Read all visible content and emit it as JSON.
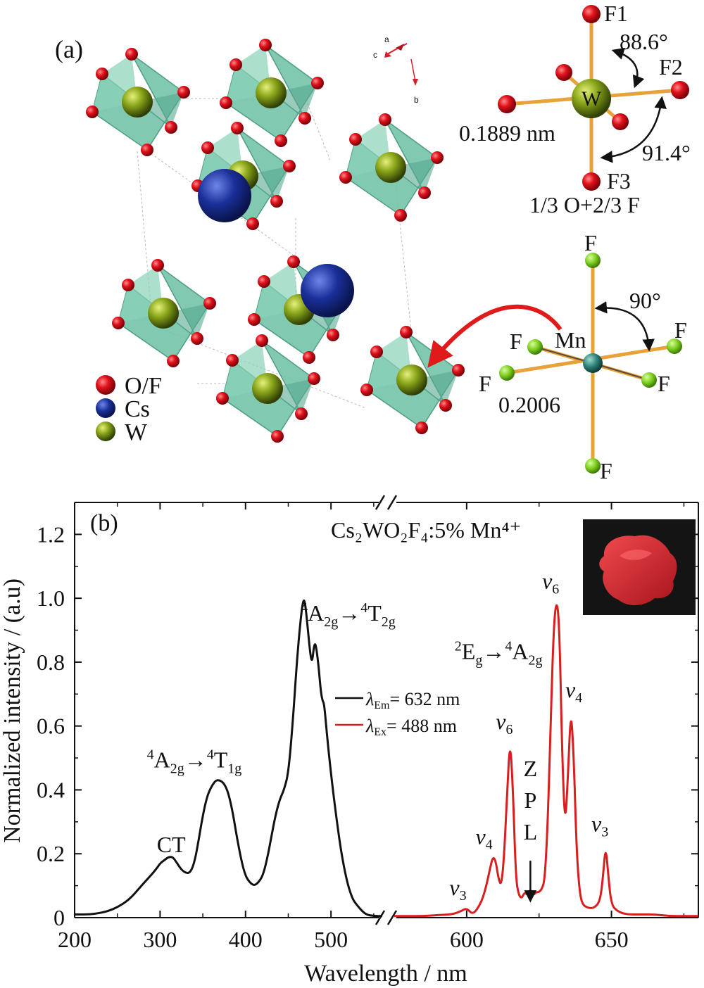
{
  "panel_a": {
    "label": "(a)",
    "axes_indicator": {
      "a": "a",
      "b": "b",
      "c": "c"
    },
    "legend": [
      {
        "label": "O/F",
        "color": "#e0121c"
      },
      {
        "label": "Cs",
        "color": "#1a2f9a"
      },
      {
        "label": "W",
        "color": "#6f8a12"
      }
    ],
    "wo6": {
      "labels": {
        "f1": "F1",
        "f2": "F2",
        "f3": "F3",
        "center": "W"
      },
      "angle1": "88.6°",
      "angle2": "91.4°",
      "bond": "0.1889 nm",
      "site_note": "1/3 O+2/3 F"
    },
    "mnf6": {
      "labels": {
        "top": "F",
        "left": "F",
        "right": "F",
        "lower_left": "F",
        "lower_right": "F",
        "bottom": "F",
        "center": "Mn"
      },
      "angle": "90°",
      "bond": "0.2006"
    },
    "colors": {
      "octahedron": "#6fc1a6",
      "oxygen": "#e0121c",
      "cesium": "#1a2f9a",
      "tungsten": "#6f8a12",
      "fluorine": "#7ccc1e",
      "bond": "#e8a23a",
      "arrow": "#e01a1a"
    }
  },
  "chart_data": {
    "type": "line",
    "panel_label": "(b)",
    "title": "Cs₂WO₂F₄:5% Mn⁴⁺",
    "xlabel": "Wavelength / nm",
    "ylabel": "Normalized intensity / (a.u)",
    "xlim_left": [
      200,
      560
    ],
    "xlim_right": [
      575,
      680
    ],
    "axis_break": "//",
    "ylim": [
      0,
      1.3
    ],
    "yticks": [
      0,
      0.2,
      0.4,
      0.6,
      0.8,
      1.0,
      1.2
    ],
    "ytick_labels": [
      "0",
      "0.2",
      "0.4",
      "0.6",
      "0.8",
      "1.0",
      "1.2"
    ],
    "xticks_left": [
      200,
      300,
      400,
      500
    ],
    "xticks_right": [
      600,
      650
    ],
    "legend": [
      {
        "label": "λ",
        "sub": "Em",
        "value": "= 632 nm",
        "color": "#111111"
      },
      {
        "label": "λ",
        "sub": "Ex",
        "value": "= 488 nm",
        "color": "#d81e1e"
      }
    ],
    "series": [
      {
        "name": "λEm= 632 nm",
        "color": "#111111",
        "x": [
          200,
          220,
          240,
          255,
          265,
          275,
          285,
          295,
          300,
          305,
          310,
          315,
          320,
          325,
          330,
          335,
          340,
          345,
          350,
          355,
          360,
          365,
          370,
          375,
          380,
          385,
          390,
          395,
          400,
          405,
          410,
          415,
          420,
          425,
          430,
          435,
          440,
          445,
          450,
          455,
          460,
          465,
          468,
          470,
          473,
          476,
          478,
          480,
          482,
          485,
          488,
          490,
          492,
          495,
          500,
          505,
          510,
          515,
          520,
          525,
          530,
          540,
          550,
          560
        ],
        "y": [
          0.01,
          0.01,
          0.02,
          0.04,
          0.06,
          0.09,
          0.12,
          0.15,
          0.17,
          0.18,
          0.19,
          0.19,
          0.17,
          0.15,
          0.14,
          0.14,
          0.17,
          0.24,
          0.32,
          0.38,
          0.41,
          0.43,
          0.43,
          0.42,
          0.39,
          0.33,
          0.25,
          0.18,
          0.13,
          0.11,
          0.1,
          0.11,
          0.13,
          0.18,
          0.25,
          0.32,
          0.37,
          0.4,
          0.45,
          0.6,
          0.8,
          0.95,
          1.0,
          0.98,
          0.9,
          0.82,
          0.8,
          0.85,
          0.86,
          0.8,
          0.71,
          0.68,
          0.67,
          0.58,
          0.45,
          0.34,
          0.24,
          0.16,
          0.1,
          0.06,
          0.04,
          0.01,
          0.005,
          0.005
        ]
      },
      {
        "name": "λEx= 488 nm",
        "color": "#d81e1e",
        "x": [
          575,
          580,
          585,
          590,
          595,
          598,
          600,
          602,
          604,
          606,
          608,
          609,
          610,
          611,
          612,
          613,
          614,
          615,
          616,
          617,
          618,
          619,
          620,
          621,
          622,
          623,
          624,
          625,
          626,
          627,
          628,
          629,
          630,
          631,
          632,
          633,
          634,
          635,
          636,
          637,
          638,
          639,
          640,
          642,
          644,
          646,
          647,
          648,
          649,
          650,
          652,
          655,
          660,
          665,
          670,
          675,
          680
        ],
        "y": [
          0.005,
          0.005,
          0.005,
          0.008,
          0.01,
          0.02,
          0.03,
          0.01,
          0.03,
          0.07,
          0.15,
          0.19,
          0.18,
          0.12,
          0.1,
          0.2,
          0.4,
          0.56,
          0.4,
          0.12,
          0.07,
          0.06,
          0.08,
          0.07,
          0.09,
          0.07,
          0.08,
          0.08,
          0.09,
          0.12,
          0.3,
          0.6,
          0.9,
          1.0,
          0.92,
          0.5,
          0.28,
          0.45,
          0.66,
          0.5,
          0.2,
          0.08,
          0.04,
          0.03,
          0.03,
          0.05,
          0.12,
          0.23,
          0.12,
          0.04,
          0.02,
          0.01,
          0.01,
          0.01,
          0.005,
          0.005,
          0.005
        ]
      }
    ],
    "annotations": [
      {
        "id": "ct",
        "text": "CT",
        "x": 313,
        "y": 0.205
      },
      {
        "id": "t1",
        "text_parts": [
          "4",
          "A",
          "2g",
          "→",
          "4",
          "T",
          "1g"
        ],
        "x": 340,
        "y": 0.47
      },
      {
        "id": "t2",
        "text_parts": [
          "4",
          "A",
          "2g",
          "→",
          "4",
          "T",
          "2g"
        ],
        "x": 520,
        "y": 0.93
      },
      {
        "id": "eg",
        "text_parts": [
          "2",
          "E",
          "g",
          "→",
          "4",
          "A",
          "2g"
        ],
        "x": 611,
        "y": 0.81
      },
      {
        "id": "v3a",
        "text": "v",
        "sub": "3",
        "x": 597,
        "y": 0.07
      },
      {
        "id": "v4a",
        "text": "v",
        "sub": "4",
        "x": 606,
        "y": 0.23
      },
      {
        "id": "v6a",
        "text": "v",
        "sub": "6",
        "x": 613,
        "y": 0.59
      },
      {
        "id": "v6b",
        "text": "v",
        "sub": "6",
        "x": 629,
        "y": 1.03
      },
      {
        "id": "v4b",
        "text": "v",
        "sub": "4",
        "x": 637,
        "y": 0.69
      },
      {
        "id": "v3b",
        "text": "v",
        "sub": "3",
        "x": 646,
        "y": 0.27
      },
      {
        "id": "zpl",
        "letters": [
          "Z",
          "P",
          "L"
        ],
        "x": 622,
        "y": 0.09
      }
    ],
    "inset": {
      "description_color": "#d3202a",
      "background": "#141414"
    }
  }
}
